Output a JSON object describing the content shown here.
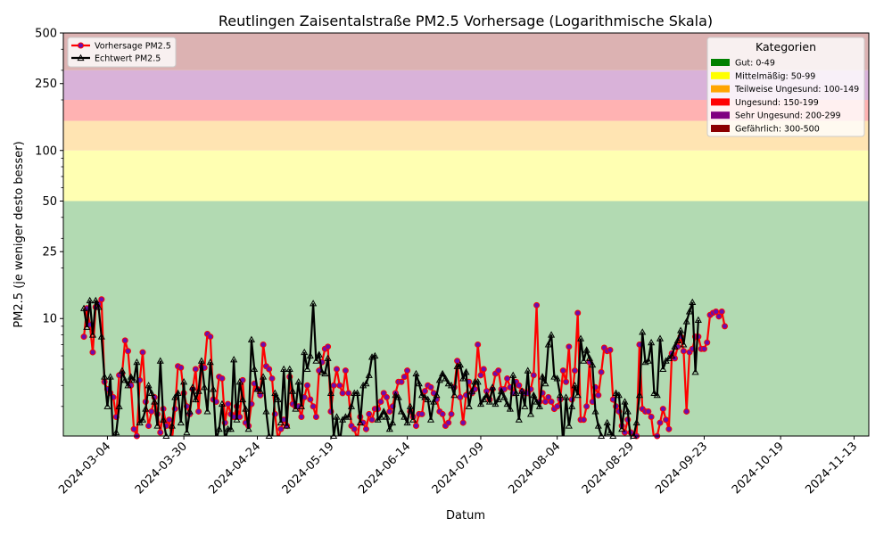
{
  "chart_data": {
    "type": "line",
    "title": "Reutlingen Zaisentalstraße PM2.5 Vorhersage (Logarithmische Skala)",
    "xlabel": "Datum",
    "ylabel": "PM2.5 (je weniger desto besser)",
    "y_scale": "log",
    "ylim": [
      2,
      500
    ],
    "xlim": [
      "2024-02-18",
      "2024-11-18"
    ],
    "grid": false,
    "x_ticks": [
      "2024-03-04",
      "2024-03-30",
      "2024-04-24",
      "2024-05-19",
      "2024-06-14",
      "2024-07-09",
      "2024-08-04",
      "2024-08-29",
      "2024-09-23",
      "2024-10-19",
      "2024-11-13"
    ],
    "y_ticks": [
      {
        "value": 10,
        "label": "10"
      },
      {
        "value": 25,
        "label": "25"
      },
      {
        "value": 50,
        "label": "50"
      },
      {
        "value": 100,
        "label": "100"
      },
      {
        "value": 250,
        "label": "250"
      },
      {
        "value": 500,
        "label": "500"
      }
    ],
    "bands": [
      {
        "label": "Gut: 0-49",
        "min": 0,
        "max": 49,
        "color": "#008000",
        "fill": "#b2dab2"
      },
      {
        "label": "Mittelmäßig: 50-99",
        "min": 50,
        "max": 99,
        "color": "#ffff00",
        "fill": "#ffffb2"
      },
      {
        "label": "Teilweise Ungesund: 100-149",
        "min": 100,
        "max": 149,
        "color": "#ffa500",
        "fill": "#ffe4b2"
      },
      {
        "label": "Ungesund: 150-199",
        "min": 150,
        "max": 199,
        "color": "#ff0000",
        "fill": "#ffb2b2"
      },
      {
        "label": "Sehr Ungesund: 200-299",
        "min": 200,
        "max": 299,
        "color": "#800080",
        "fill": "#d9b2d9"
      },
      {
        "label": "Gefährlich: 300-500",
        "min": 300,
        "max": 500,
        "color": "#8b0000",
        "fill": "#dcb2b2"
      }
    ],
    "category_legend_title": "Kategorien",
    "series_legend_position": "top-left",
    "category_legend_position": "top-right",
    "x_start": "2024-02-25",
    "series": [
      {
        "name": "Vorhersage PM2.5",
        "color": "#ff0000",
        "marker": "circle",
        "marker_face": "#6a0dad",
        "values": [
          7.8,
          11.5,
          9.2,
          6.3,
          11.7,
          12.2,
          13.0,
          4.2,
          3.8,
          3.6,
          3.4,
          2.6,
          4.6,
          4.7,
          7.4,
          6.4,
          4.0,
          2.2,
          2.0,
          4.3,
          6.3,
          3.2,
          2.3,
          2.8,
          3.4,
          2.7,
          2.1,
          2.9,
          2.3,
          2.5,
          1.9,
          2.9,
          5.2,
          5.1,
          3.6,
          3.0,
          2.7,
          3.8,
          5.0,
          2.8,
          5.2,
          5.1,
          8.1,
          7.8,
          3.3,
          3.2,
          4.5,
          4.4,
          2.4,
          3.1,
          2.7,
          2.6,
          3.0,
          2.6,
          4.3,
          2.4,
          2.3,
          3.1,
          4.1,
          3.8,
          3.5,
          7.0,
          5.2,
          5.0,
          4.4,
          2.7,
          1.9,
          2.2,
          2.5,
          2.3,
          4.5,
          3.1,
          3.0,
          3.0,
          2.6,
          3.4,
          4.0,
          3.3,
          3.0,
          2.6,
          4.9,
          5.5,
          6.6,
          6.8,
          2.8,
          4.0,
          5.0,
          4.0,
          3.6,
          4.9,
          3.6,
          2.3,
          2.2,
          1.9,
          2.6,
          2.4,
          2.2,
          2.7,
          2.5,
          2.9,
          2.9,
          3.2,
          3.6,
          3.4,
          2.8,
          3.0,
          3.6,
          4.2,
          4.2,
          4.5,
          4.9,
          2.8,
          2.6,
          2.3,
          2.7,
          2.7,
          3.7,
          4.0,
          3.9,
          3.6,
          3.3,
          2.8,
          2.7,
          2.3,
          2.4,
          2.7,
          3.9,
          5.6,
          3.4,
          2.4,
          3.5,
          4.2,
          3.6,
          3.8,
          7.0,
          4.6,
          5.0,
          3.7,
          3.3,
          3.8,
          4.7,
          4.9,
          3.8,
          3.8,
          4.4,
          3.9,
          3.6,
          4.2,
          4.0,
          3.7,
          3.6,
          3.6,
          3.8,
          4.6,
          12.0,
          3.2,
          3.6,
          3.2,
          3.4,
          3.2,
          2.9,
          3.0,
          3.3,
          4.9,
          4.2,
          6.8,
          3.3,
          4.9,
          10.8,
          2.5,
          2.5,
          3.0,
          5.5,
          3.2,
          3.9,
          3.5,
          4.8,
          6.7,
          6.4,
          6.5,
          3.3,
          3.0,
          2.8,
          2.3,
          2.1,
          2.5,
          2.1,
          1.8,
          2.0,
          7.0,
          2.9,
          2.8,
          2.8,
          2.6,
          1.9,
          2.0,
          2.4,
          2.9,
          2.5,
          2.2,
          6.2,
          5.8,
          6.8,
          7.8,
          6.4,
          2.8,
          6.3,
          6.6,
          7.8,
          7.8,
          6.6,
          6.6,
          7.2,
          10.5,
          10.8,
          11.0,
          10.3,
          11.0,
          9.0
        ]
      },
      {
        "name": "Echtwert PM2.5",
        "color": "#000000",
        "marker": "triangle",
        "marker_face": "none",
        "values": [
          11.5,
          8.9,
          12.8,
          8.0,
          12.8,
          11.7,
          7.8,
          4.5,
          3.0,
          4.5,
          1.8,
          2.1,
          3.0,
          4.9,
          4.3,
          4.0,
          4.5,
          4.3,
          5.5,
          2.4,
          2.5,
          2.9,
          4.0,
          3.6,
          3.2,
          2.3,
          5.6,
          2.5,
          2.0,
          1.8,
          2.3,
          3.4,
          3.6,
          2.4,
          4.2,
          2.1,
          2.8,
          3.9,
          3.3,
          3.7,
          5.6,
          3.9,
          2.8,
          5.5,
          3.8,
          1.9,
          2.2,
          3.1,
          1.9,
          2.2,
          2.2,
          5.7,
          2.5,
          4.2,
          3.3,
          2.9,
          2.2,
          7.5,
          5.0,
          3.8,
          3.7,
          4.5,
          2.8,
          2.0,
          1.9,
          3.6,
          3.3,
          2.4,
          5.0,
          2.3,
          5.0,
          3.7,
          2.9,
          4.2,
          3.0,
          6.3,
          5.0,
          6.0,
          12.3,
          5.6,
          6.1,
          4.8,
          4.7,
          5.8,
          3.6,
          2.0,
          2.6,
          1.8,
          2.5,
          2.6,
          2.6,
          3.0,
          3.6,
          3.6,
          2.4,
          4.0,
          4.1,
          4.6,
          5.9,
          6.0,
          2.5,
          2.6,
          2.8,
          2.6,
          2.2,
          2.4,
          3.5,
          3.4,
          2.8,
          2.6,
          2.4,
          3.0,
          2.5,
          4.7,
          4.1,
          3.5,
          3.4,
          3.3,
          2.5,
          3.2,
          3.5,
          4.3,
          4.7,
          4.4,
          4.1,
          4.0,
          3.5,
          5.2,
          5.3,
          4.4,
          4.8,
          3.0,
          3.7,
          4.2,
          4.2,
          3.1,
          3.3,
          3.5,
          3.2,
          3.9,
          3.1,
          3.3,
          3.7,
          3.4,
          3.1,
          2.9,
          4.6,
          3.6,
          2.5,
          3.7,
          3.0,
          4.9,
          2.7,
          3.5,
          3.2,
          3.0,
          4.5,
          4.1,
          7.0,
          8.0,
          4.5,
          4.4,
          3.5,
          1.8,
          3.4,
          2.3,
          3.0,
          4.0,
          3.5,
          7.6,
          5.6,
          6.5,
          5.8,
          5.3,
          2.8,
          2.3,
          2.0,
          1.9,
          2.4,
          2.1,
          2.0,
          3.6,
          3.5,
          2.2,
          3.2,
          2.8,
          1.9,
          2.0,
          2.4,
          3.5,
          8.3,
          5.5,
          5.6,
          7.2,
          3.6,
          3.5,
          7.6,
          5.0,
          5.6,
          5.8,
          6.0,
          6.8,
          7.4,
          8.5,
          7.0,
          9.6,
          11.0,
          12.5,
          4.8,
          9.8
        ]
      }
    ]
  }
}
